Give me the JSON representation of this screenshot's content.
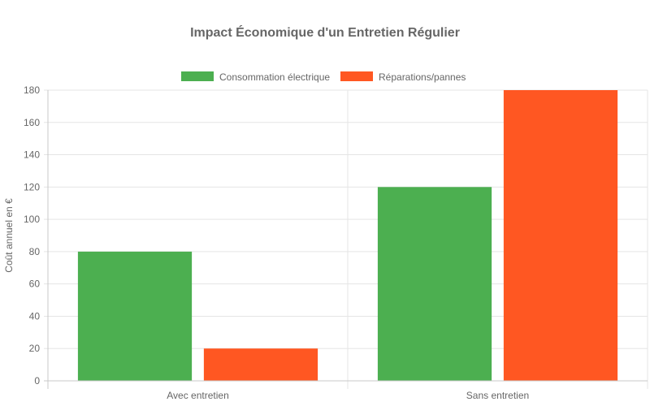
{
  "chart_data": {
    "type": "bar",
    "title": "Impact Économique d'un Entretien Régulier",
    "categories": [
      "Avec entretien",
      "Sans entretien"
    ],
    "series": [
      {
        "name": "Consommation électrique",
        "color": "#4CAF50",
        "values": [
          80,
          120
        ]
      },
      {
        "name": "Réparations/pannes",
        "color": "#FF5722",
        "values": [
          20,
          180
        ]
      }
    ],
    "xlabel": "",
    "ylabel": "Coût annuel en €",
    "ylim": [
      0,
      180
    ],
    "yticks": [
      0,
      20,
      40,
      60,
      80,
      100,
      120,
      140,
      160,
      180
    ],
    "grid": true,
    "legend_position": "top-center"
  }
}
